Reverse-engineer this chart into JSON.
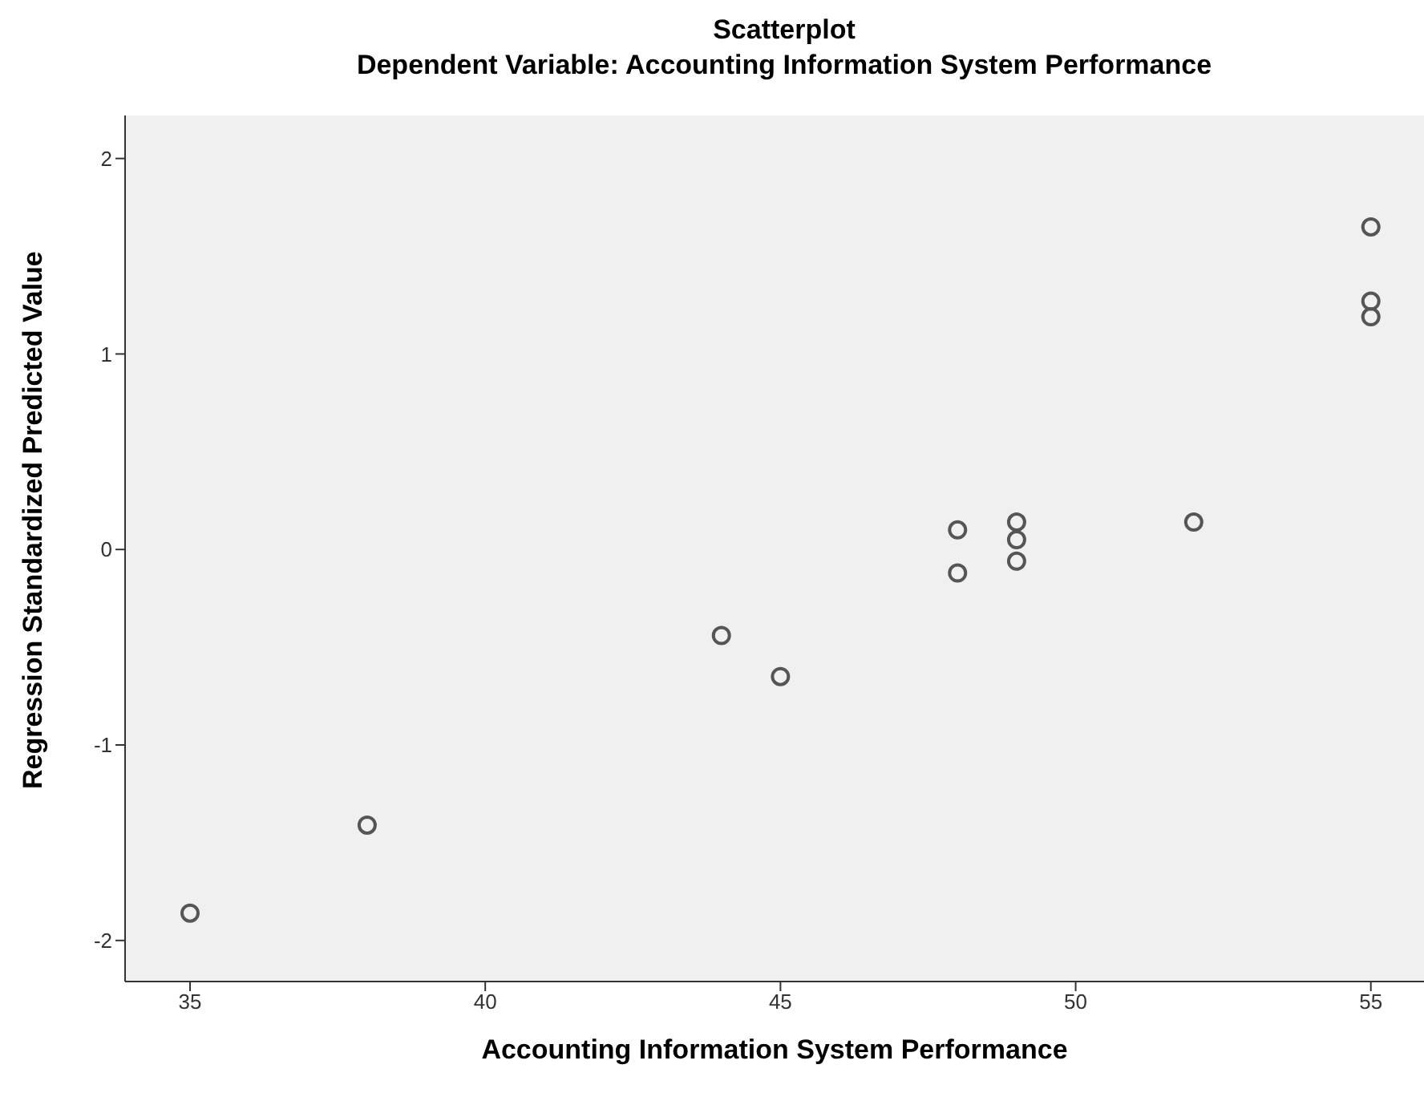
{
  "chart_data": {
    "type": "scatter",
    "title": "Scatterplot",
    "subtitle": "Dependent Variable: Accounting Information System Performance",
    "xlabel": "Accounting Information System Performance",
    "ylabel": "Regression Standardized Predicted Value",
    "x": [
      35,
      38,
      44,
      45,
      48,
      48,
      49,
      49,
      49,
      52,
      55,
      55,
      55
    ],
    "series": [
      {
        "color": "#555555",
        "values": [
          -1.86,
          -1.41,
          -0.44,
          -0.65,
          0.1,
          -0.12,
          0.14,
          0.05,
          -0.06,
          0.14,
          1.65,
          1.27,
          1.19
        ]
      }
    ],
    "xlim": [
      33.9,
      55.9
    ],
    "xticks": [
      35,
      40,
      45,
      50,
      55
    ],
    "ylim": [
      -2.21,
      2.22
    ],
    "yticks": [
      -2,
      -1,
      0,
      1,
      2
    ],
    "grid": false,
    "legend": false,
    "marker": "circle"
  }
}
